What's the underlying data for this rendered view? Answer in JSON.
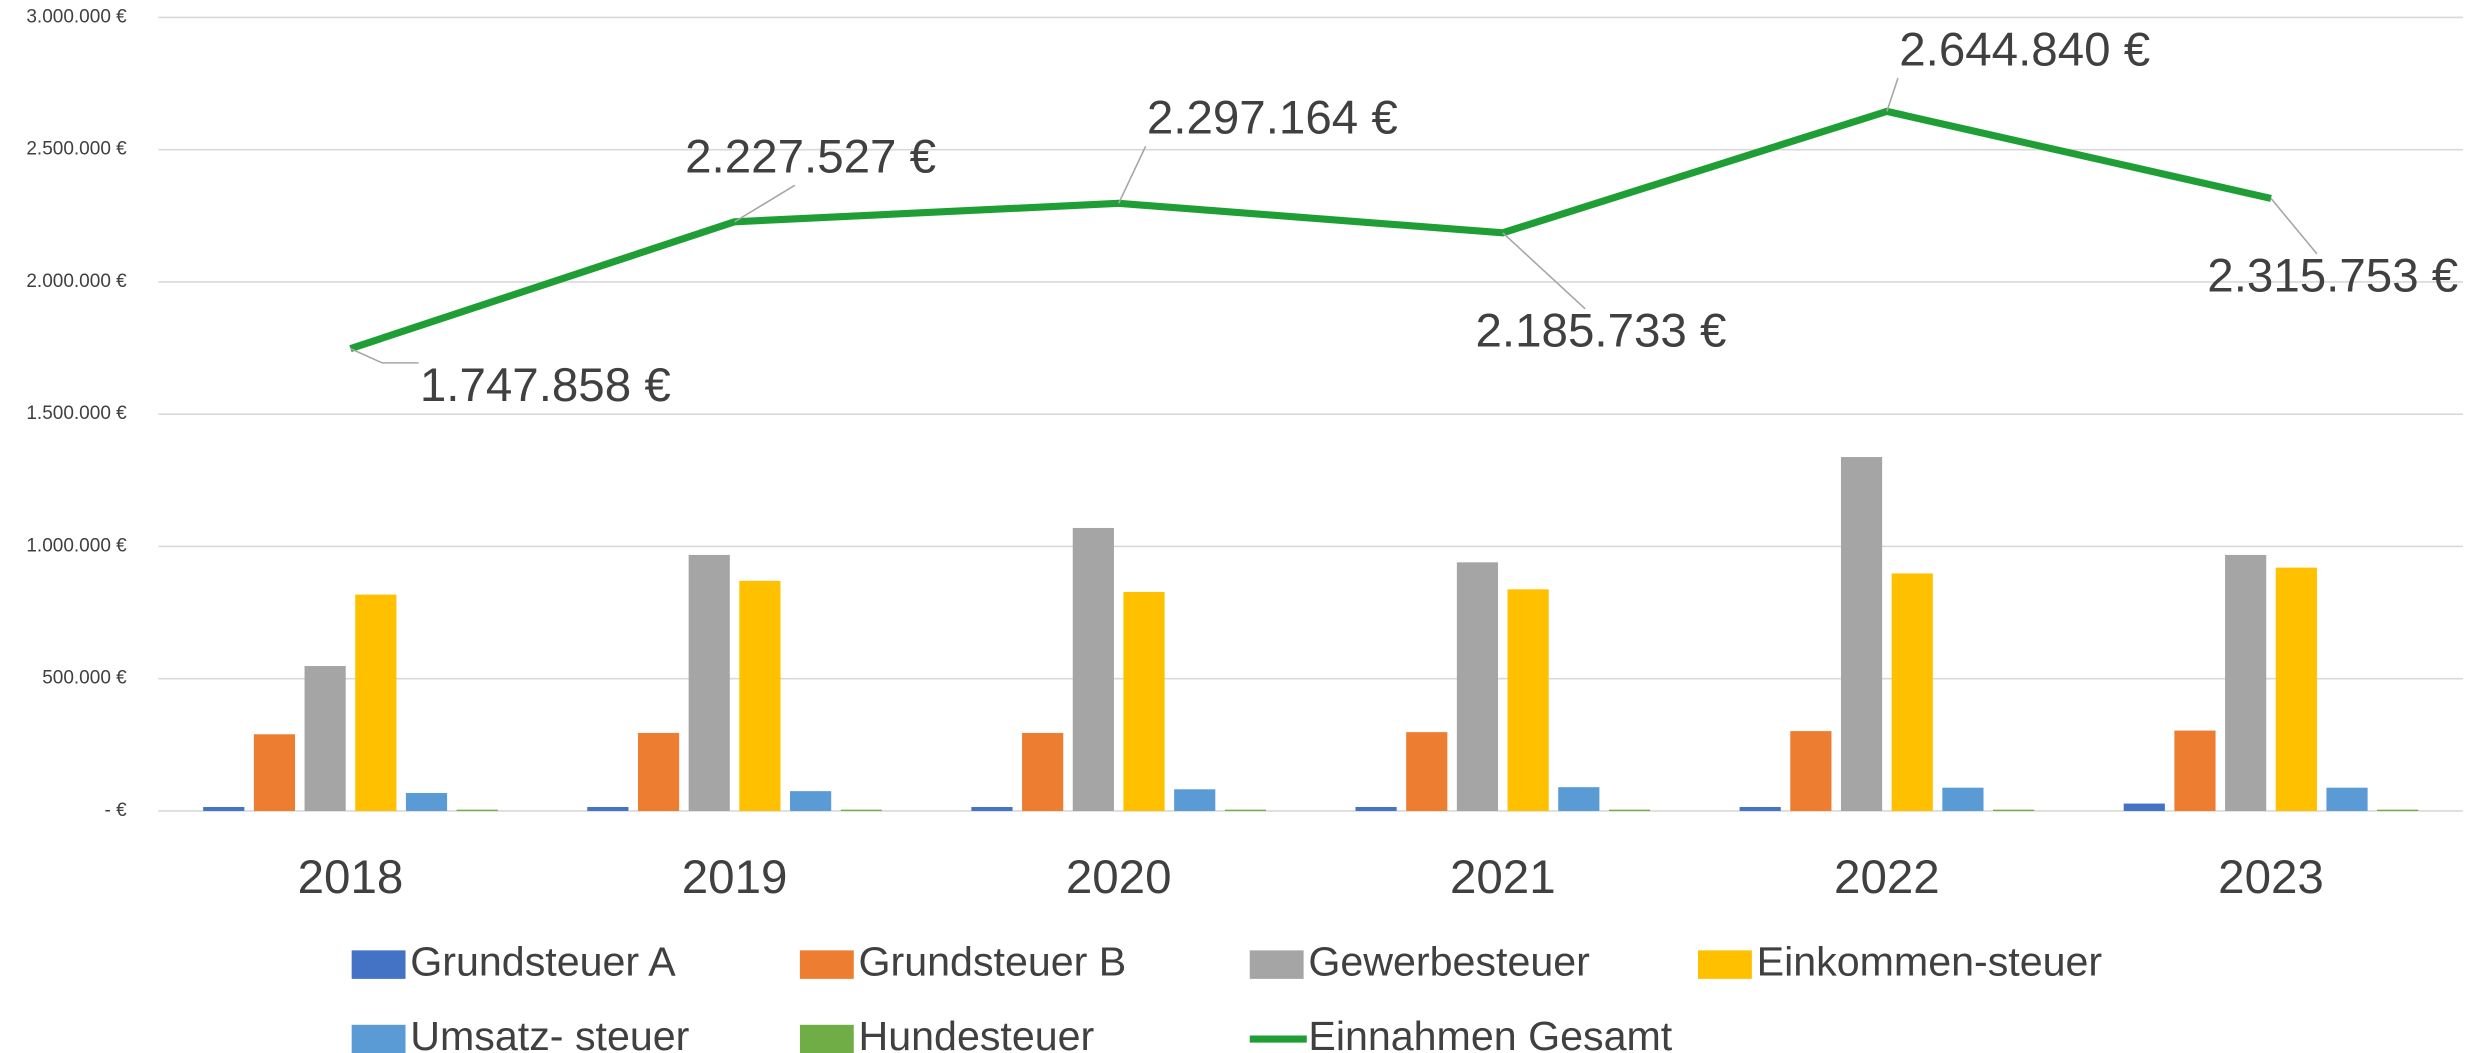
{
  "chart_data": {
    "type": "bar",
    "categories": [
      "2018",
      "2019",
      "2020",
      "2021",
      "2022",
      "2023"
    ],
    "series": [
      {
        "name": "Grundsteuer A",
        "color": "#4472c4",
        "values": [
          15000,
          15000,
          15000,
          15000,
          15000,
          28000
        ]
      },
      {
        "name": "Grundsteuer B",
        "color": "#ed7d31",
        "values": [
          290000,
          295000,
          295000,
          298000,
          302000,
          304000
        ]
      },
      {
        "name": "Gewerbesteuer",
        "color": "#a5a5a5",
        "values": [
          548000,
          968000,
          1070000,
          940000,
          1338000,
          968000
        ]
      },
      {
        "name": "Einkommen-steuer",
        "color": "#ffc000",
        "values": [
          818000,
          870000,
          828000,
          838000,
          898000,
          920000
        ]
      },
      {
        "name": "Umsatz- steuer",
        "color": "#5b9bd5",
        "values": [
          68000,
          75000,
          82000,
          90000,
          88000,
          88000
        ]
      },
      {
        "name": "Hundesteuer",
        "color": "#70ad47",
        "values": [
          5000,
          5000,
          5000,
          5000,
          5000,
          5000
        ]
      },
      {
        "name": "Einnahmen Gesamt",
        "color": "#1f9e35",
        "type": "line",
        "values": [
          1747858,
          2227527,
          2297164,
          2185733,
          2644840,
          2315753
        ],
        "value_labels": [
          "1.747.858 €",
          "2.227.527 €",
          "2.297.164 €",
          "2.185.733 €",
          "2.644.840 €",
          "2.315.753 €"
        ]
      }
    ],
    "ylim": [
      0,
      3000000
    ],
    "yticks": [
      {
        "value": 0,
        "label": "-  €"
      },
      {
        "value": 500000,
        "label": "500.000 €"
      },
      {
        "value": 1000000,
        "label": "1.000.000 €"
      },
      {
        "value": 1500000,
        "label": "1.500.000 €"
      },
      {
        "value": 2000000,
        "label": "2.000.000 €"
      },
      {
        "value": 2500000,
        "label": "2.500.000 €"
      },
      {
        "value": 3000000,
        "label": "3.000.000 €"
      }
    ],
    "grid": true,
    "legend": "bottom"
  }
}
